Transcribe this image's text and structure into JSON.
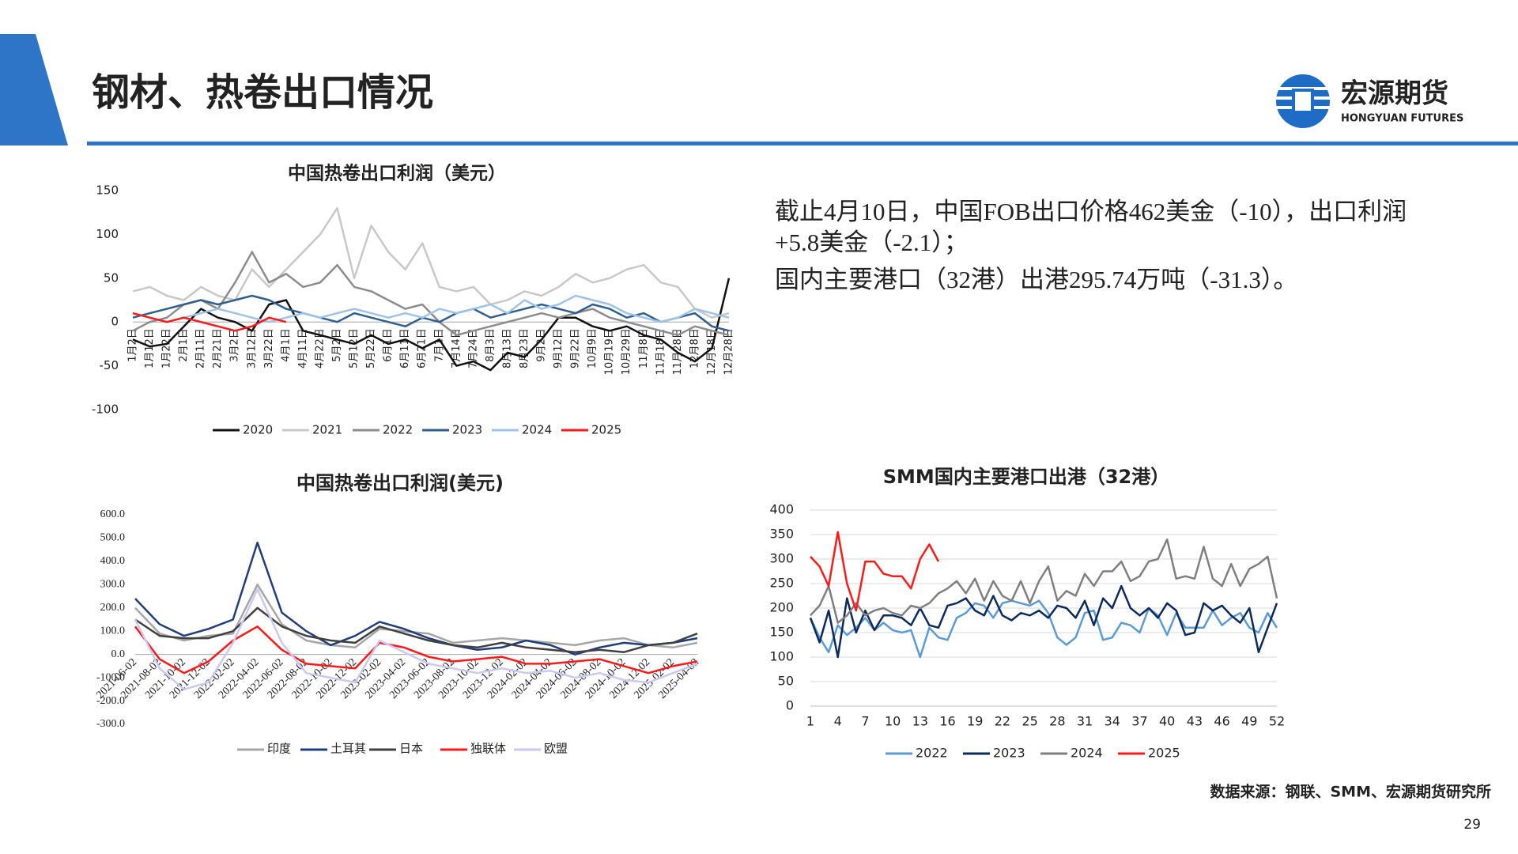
{
  "header": {
    "title": "钢材、热卷出口情况",
    "logo_name": "宏源期货",
    "logo_subtitle": "HONGYUAN FUTURES"
  },
  "commentary": [
    "截止4月10日，中国FOB出口价格462美金（-10），出口利润+5.8美金（-2.1）；",
    "国内主要港口（32港）出港295.74万吨（-31.3）。"
  ],
  "chart_data": [
    {
      "type": "line",
      "title": "中国热卷出口利润（美元）",
      "categories": [
        "1月2日",
        "1月12日",
        "1月22日",
        "2月1日",
        "2月11日",
        "2月21日",
        "3月2日",
        "3月12日",
        "3月22日",
        "4月1日",
        "4月11日",
        "4月22日",
        "5月2日",
        "5月12日",
        "5月22日",
        "6月1日",
        "6月11日",
        "6月21日",
        "7月1日",
        "7月14日",
        "7月24日",
        "8月3日",
        "8月13日",
        "8月23日",
        "9月2日",
        "9月12日",
        "9月22日",
        "10月9日",
        "10月19日",
        "10月29日",
        "11月8日",
        "11月18日",
        "11月28日",
        "12月8日",
        "12月18日",
        "12月28日"
      ],
      "series": [
        {
          "name": "2020",
          "color": "#111111",
          "values": [
            -20,
            -28,
            -25,
            -5,
            15,
            5,
            0,
            -10,
            20,
            25,
            -10,
            -15,
            -20,
            -25,
            -15,
            -25,
            -20,
            -30,
            -20,
            -50,
            -45,
            -55,
            -35,
            -40,
            -20,
            5,
            5,
            -5,
            -10,
            -5,
            -15,
            -20,
            -35,
            -45,
            -30,
            50
          ]
        },
        {
          "name": "2021",
          "color": "#c8c8c8",
          "values": [
            35,
            40,
            30,
            25,
            40,
            30,
            25,
            60,
            40,
            60,
            80,
            100,
            130,
            50,
            110,
            80,
            60,
            90,
            40,
            35,
            40,
            20,
            25,
            35,
            30,
            40,
            55,
            45,
            50,
            60,
            65,
            45,
            40,
            15,
            5,
            10
          ]
        },
        {
          "name": "2022",
          "color": "#8c8c8c",
          "values": [
            -10,
            0,
            5,
            20,
            25,
            15,
            45,
            80,
            45,
            55,
            40,
            45,
            65,
            40,
            35,
            25,
            15,
            20,
            0,
            -15,
            -10,
            -5,
            0,
            5,
            10,
            5,
            10,
            15,
            5,
            0,
            -5,
            -10,
            -15,
            -5,
            -10,
            -15
          ]
        },
        {
          "name": "2023",
          "color": "#2f5f8f",
          "values": [
            5,
            10,
            15,
            20,
            25,
            20,
            25,
            30,
            25,
            15,
            10,
            5,
            0,
            10,
            5,
            0,
            -5,
            5,
            0,
            10,
            15,
            5,
            10,
            15,
            20,
            15,
            10,
            20,
            15,
            5,
            10,
            0,
            5,
            10,
            -5,
            -10
          ]
        },
        {
          "name": "2024",
          "color": "#9dc3e6",
          "values": [
            10,
            5,
            0,
            5,
            10,
            15,
            10,
            5,
            0,
            5,
            10,
            5,
            10,
            15,
            10,
            5,
            10,
            5,
            15,
            10,
            15,
            20,
            10,
            25,
            15,
            20,
            30,
            25,
            20,
            10,
            5,
            0,
            5,
            15,
            10,
            5
          ]
        },
        {
          "name": "2025",
          "color": "#ff1a1a",
          "values": [
            10,
            5,
            0,
            5,
            0,
            -5,
            -10,
            -5,
            5,
            0,
            null,
            null,
            null,
            null,
            null,
            null,
            null,
            null,
            null,
            null,
            null,
            null,
            null,
            null,
            null,
            null,
            null,
            null,
            null,
            null,
            null,
            null,
            null,
            null,
            null,
            null
          ]
        }
      ],
      "ylim": [
        -100,
        150
      ],
      "yticks": [
        -100,
        -50,
        0,
        50,
        100,
        150
      ],
      "grid": false
    },
    {
      "type": "line",
      "title": "中国热卷出口利润(美元)",
      "categories": [
        "2021-06-02",
        "2021-08-02",
        "2021-10-02",
        "2021-12-02",
        "2022-02-02",
        "2022-04-02",
        "2022-06-02",
        "2022-08-02",
        "2022-10-02",
        "2022-12-02",
        "2023-02-02",
        "2023-04-02",
        "2023-06-02",
        "2023-08-02",
        "2023-10-02",
        "2023-12-02",
        "2024-02-02",
        "2024-04-02",
        "2024-06-02",
        "2024-08-02",
        "2024-10-02",
        "2024-12-02",
        "2025-02-02",
        "2025-04-02"
      ],
      "series": [
        {
          "name": "印度",
          "color": "#a6a6a6",
          "values": [
            200,
            90,
            60,
            80,
            90,
            300,
            130,
            60,
            40,
            30,
            110,
            100,
            90,
            50,
            60,
            70,
            60,
            50,
            40,
            60,
            70,
            40,
            30,
            50
          ]
        },
        {
          "name": "土耳其",
          "color": "#1f3e7a",
          "values": [
            240,
            130,
            80,
            110,
            150,
            480,
            180,
            100,
            40,
            80,
            140,
            110,
            70,
            40,
            20,
            30,
            60,
            40,
            0,
            30,
            50,
            40,
            50,
            70
          ]
        },
        {
          "name": "日本",
          "color": "#404040",
          "values": [
            150,
            80,
            70,
            70,
            100,
            200,
            120,
            80,
            60,
            50,
            120,
            90,
            60,
            40,
            30,
            50,
            30,
            20,
            10,
            20,
            10,
            40,
            50,
            90
          ]
        },
        {
          "name": "独联体",
          "color": "#ff1a1a",
          "values": [
            120,
            -20,
            -80,
            -30,
            60,
            120,
            20,
            -40,
            -50,
            -60,
            50,
            30,
            -10,
            -30,
            -20,
            -10,
            -40,
            -40,
            -30,
            -20,
            -50,
            -80,
            -50,
            -30
          ]
        },
        {
          "name": "欧盟",
          "color": "#c9c9f2",
          "values": [
            150,
            -60,
            -150,
            -120,
            50,
            280,
            50,
            -80,
            -100,
            -120,
            60,
            10,
            -40,
            -60,
            -80,
            -60,
            -80,
            -70,
            -100,
            -80,
            -110,
            -120,
            -80,
            -40
          ]
        }
      ],
      "ylim": [
        -300,
        600
      ],
      "yticks": [
        {
          "value": -300,
          "label": "-300.0"
        },
        {
          "value": -200,
          "label": "-200.0"
        },
        {
          "value": -100,
          "label": "-100.0"
        },
        {
          "value": 0,
          "label": "0.0"
        },
        {
          "value": 100,
          "label": "100.0"
        },
        {
          "value": 200,
          "label": "200.0"
        },
        {
          "value": 300,
          "label": "300.0"
        },
        {
          "value": 400,
          "label": "400.0"
        },
        {
          "value": 500,
          "label": "500.0"
        },
        {
          "value": 600,
          "label": "600.0"
        }
      ],
      "grid": false
    },
    {
      "type": "line",
      "title": "SMM国内主要港口出港（32港）",
      "x": [
        1,
        2,
        3,
        4,
        5,
        6,
        7,
        8,
        9,
        10,
        11,
        12,
        13,
        14,
        15,
        16,
        17,
        18,
        19,
        20,
        21,
        22,
        23,
        24,
        25,
        26,
        27,
        28,
        29,
        30,
        31,
        32,
        33,
        34,
        35,
        36,
        37,
        38,
        39,
        40,
        41,
        42,
        43,
        44,
        45,
        46,
        47,
        48,
        49,
        50,
        51,
        52
      ],
      "series": [
        {
          "name": "2022",
          "color": "#5b9bd5",
          "values": [
            180,
            140,
            110,
            165,
            145,
            160,
            180,
            155,
            170,
            155,
            150,
            155,
            100,
            160,
            140,
            135,
            180,
            190,
            210,
            205,
            180,
            210,
            215,
            210,
            205,
            215,
            190,
            140,
            125,
            140,
            190,
            195,
            135,
            140,
            170,
            165,
            150,
            200,
            185,
            145,
            190,
            160,
            160,
            160,
            195,
            165,
            180,
            190,
            160,
            150,
            190,
            160
          ]
        },
        {
          "name": "2023",
          "color": "#0d2a5c",
          "values": [
            180,
            130,
            195,
            100,
            220,
            150,
            195,
            155,
            185,
            185,
            180,
            165,
            200,
            165,
            160,
            205,
            210,
            220,
            195,
            185,
            225,
            185,
            175,
            190,
            185,
            195,
            180,
            205,
            200,
            180,
            215,
            165,
            220,
            200,
            245,
            200,
            185,
            200,
            180,
            210,
            195,
            145,
            150,
            210,
            195,
            205,
            185,
            170,
            200,
            110,
            160,
            210
          ]
        },
        {
          "name": "2024",
          "color": "#7f7f7f",
          "values": [
            185,
            205,
            245,
            170,
            185,
            210,
            185,
            195,
            200,
            190,
            185,
            205,
            200,
            210,
            230,
            240,
            255,
            230,
            260,
            215,
            255,
            225,
            215,
            255,
            210,
            255,
            285,
            215,
            235,
            225,
            270,
            245,
            275,
            275,
            295,
            255,
            265,
            295,
            300,
            340,
            260,
            265,
            260,
            325,
            260,
            245,
            290,
            245,
            280,
            290,
            305,
            220
          ]
        },
        {
          "name": "2025",
          "color": "#ff1a1a",
          "values": [
            305,
            285,
            245,
            355,
            250,
            195,
            295,
            295,
            270,
            265,
            265,
            240,
            300,
            330,
            295,
            null,
            null,
            null,
            null,
            null,
            null,
            null,
            null,
            null,
            null,
            null,
            null,
            null,
            null,
            null,
            null,
            null,
            null,
            null,
            null,
            null,
            null,
            null,
            null,
            null,
            null,
            null,
            null,
            null,
            null,
            null,
            null,
            null,
            null,
            null,
            null,
            null
          ]
        }
      ],
      "xlim": [
        1,
        52
      ],
      "xticks": [
        1,
        4,
        7,
        10,
        13,
        16,
        19,
        22,
        25,
        28,
        31,
        34,
        37,
        40,
        43,
        46,
        49,
        52
      ],
      "ylim": [
        0,
        400
      ],
      "yticks": [
        0,
        50,
        100,
        150,
        200,
        250,
        300,
        350,
        400
      ],
      "grid": true
    }
  ],
  "footer": {
    "source": "数据来源：钢联、SMM、宏源期货研究所",
    "page": "29"
  }
}
